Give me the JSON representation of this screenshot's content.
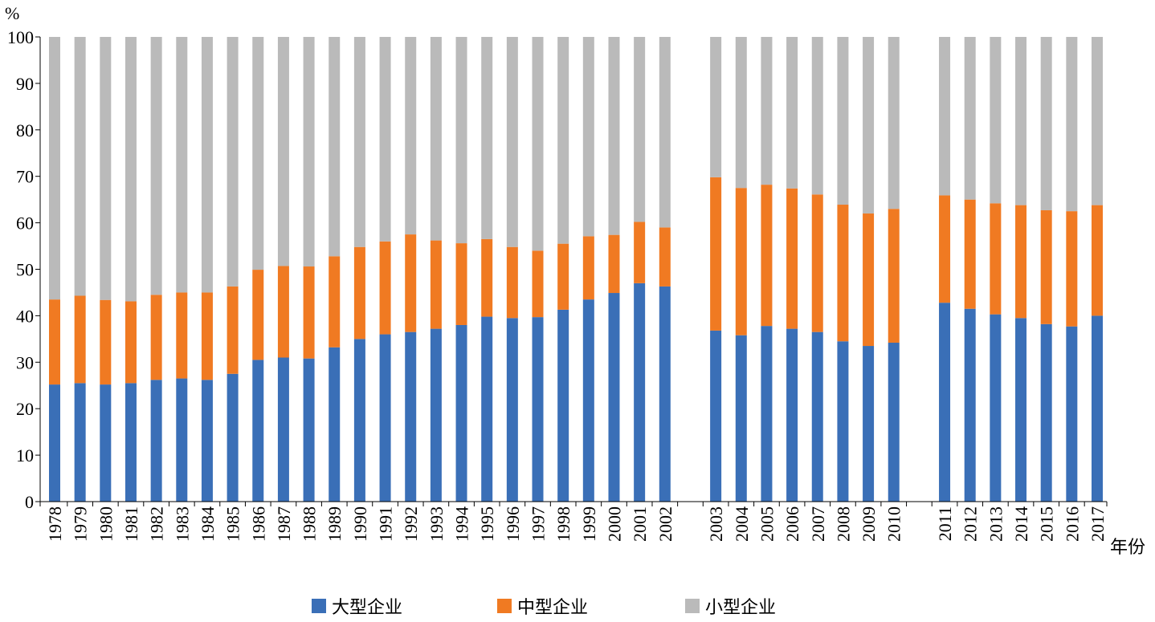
{
  "chart_data": {
    "type": "bar",
    "stacked": true,
    "title": "",
    "ylabel": "%",
    "xlabel": "年份",
    "ylim": [
      0,
      100
    ],
    "yticks": [
      0,
      10,
      20,
      30,
      40,
      50,
      60,
      70,
      80,
      90,
      100
    ],
    "grid": false,
    "legend_position": "bottom",
    "categories": [
      "1978",
      "1979",
      "1980",
      "1981",
      "1982",
      "1983",
      "1984",
      "1985",
      "1986",
      "1987",
      "1988",
      "1989",
      "1990",
      "1991",
      "1992",
      "1993",
      "1994",
      "1995",
      "1996",
      "1997",
      "1998",
      "1999",
      "2000",
      "2001",
      "2002",
      "",
      "2003",
      "2004",
      "2005",
      "2006",
      "2007",
      "2008",
      "2009",
      "2010",
      "",
      "2011",
      "2012",
      "2013",
      "2014",
      "2015",
      "2016",
      "2017"
    ],
    "series": [
      {
        "name": "大型企业",
        "color": "#3a6fb7",
        "values": [
          25.2,
          25.5,
          25.2,
          25.5,
          26.2,
          26.5,
          26.2,
          27.5,
          30.5,
          31.0,
          30.8,
          33.2,
          35.0,
          36.0,
          36.5,
          37.2,
          38.0,
          39.8,
          39.5,
          39.7,
          41.3,
          43.5,
          44.9,
          47.0,
          46.3,
          null,
          36.8,
          35.8,
          37.8,
          37.2,
          36.5,
          34.5,
          33.5,
          34.2,
          null,
          42.8,
          41.5,
          40.3,
          39.5,
          38.2,
          37.7,
          40.0
        ]
      },
      {
        "name": "中型企业",
        "color": "#f07a22",
        "values": [
          18.3,
          18.8,
          18.2,
          17.6,
          18.3,
          18.5,
          18.8,
          18.8,
          19.4,
          19.7,
          19.8,
          19.6,
          19.8,
          20.0,
          21.0,
          19.0,
          17.6,
          16.7,
          15.3,
          14.3,
          14.2,
          13.6,
          12.5,
          13.2,
          12.7,
          null,
          33.0,
          31.7,
          30.4,
          30.2,
          29.6,
          29.4,
          28.5,
          28.8,
          null,
          23.1,
          23.5,
          23.9,
          24.3,
          24.5,
          24.8,
          23.8
        ]
      },
      {
        "name": "小型企业",
        "color": "#bababa",
        "values": [
          56.5,
          55.7,
          56.6,
          56.9,
          55.5,
          55.0,
          55.0,
          53.7,
          50.1,
          49.3,
          49.4,
          47.2,
          45.2,
          44.0,
          42.5,
          43.8,
          44.4,
          43.5,
          45.2,
          46.0,
          44.5,
          42.9,
          42.6,
          39.8,
          41.0,
          null,
          30.2,
          32.5,
          31.8,
          32.6,
          33.9,
          36.1,
          38.0,
          37.0,
          null,
          34.1,
          35.0,
          35.8,
          36.2,
          37.3,
          37.5,
          36.2
        ]
      }
    ]
  }
}
